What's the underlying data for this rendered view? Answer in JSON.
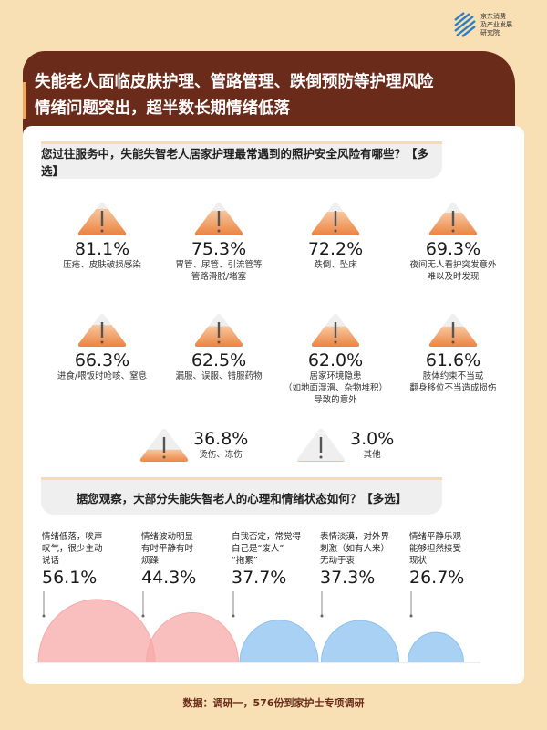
{
  "logo": {
    "text": [
      "京东消费",
      "及产业发展",
      "研究院"
    ]
  },
  "header": {
    "title_line1": "失能老人面临皮肤护理、管路管理、跌倒预防等护理风险",
    "title_line2": "情绪问题突出，超半数长期情绪低落"
  },
  "colors": {
    "header_bg": "#6a2b1b",
    "page_bg": "#f9dfb4",
    "warning_orange": "#ee8a45",
    "negative_pink": "#f7a9a8",
    "neutral_blue": "#8cc1f0"
  },
  "chart_data": [
    {
      "type": "bar",
      "title": "您过往服务中，失能失智老人居家护理最常遇到的照护安全风险有哪些？【多选】",
      "unit": "%",
      "icon": "warning-triangle-icon",
      "categories": [
        "压疮、皮肤破损感染",
        "胃管、尿管、引流管等\n管路滑脱/堵塞",
        "跌倒、坠床",
        "夜间无人看护突发意外\n难以及时发现",
        "进食/喂饭时呛咳、窒息",
        "漏服、误服、错服药物",
        "居家环境隐患\n（如地面湿滑、杂物堆积）\n导致的意外",
        "肢体约束不当或\n翻身移位不当造成损伤",
        "烫伤、冻伤",
        "其他"
      ],
      "values": [
        81.1,
        75.3,
        72.2,
        69.3,
        66.3,
        62.5,
        62.0,
        61.6,
        36.8,
        3.0
      ],
      "labels": [
        "81.1%",
        "75.3%",
        "72.2%",
        "69.3%",
        "66.3%",
        "62.5%",
        "62.0%",
        "61.6%",
        "36.8%",
        "3.0%"
      ]
    },
    {
      "type": "bubble",
      "title": "据您观察，大部分失能失智老人的心理和情绪状态如何？【多选】",
      "unit": "%",
      "categories": [
        "情绪低落，唉声\n叹气，很少主动\n说话",
        "情绪波动明显\n有时平静有时\n烦躁",
        "自我否定，常觉得\n自己是“废人”\n“拖累”",
        "表情淡漠，对外界\n刺激（如有人来）\n无动于衷",
        "情绪平静乐观\n能够坦然接受\n现状"
      ],
      "values": [
        56.1,
        44.3,
        37.7,
        37.3,
        26.7
      ],
      "labels": [
        "56.1%",
        "44.3%",
        "37.7%",
        "37.3%",
        "26.7%"
      ],
      "tone": [
        "negative",
        "negative",
        "neutral",
        "neutral",
        "neutral"
      ]
    }
  ],
  "footer": {
    "source": "数据：调研一，576份到家护士专项调研"
  }
}
